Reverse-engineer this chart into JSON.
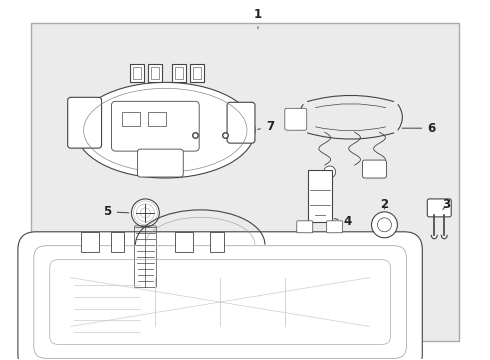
{
  "fig_bg": "#ffffff",
  "box_bg": "#ebebeb",
  "line_color": "#444444",
  "label_fontsize": 8.5
}
